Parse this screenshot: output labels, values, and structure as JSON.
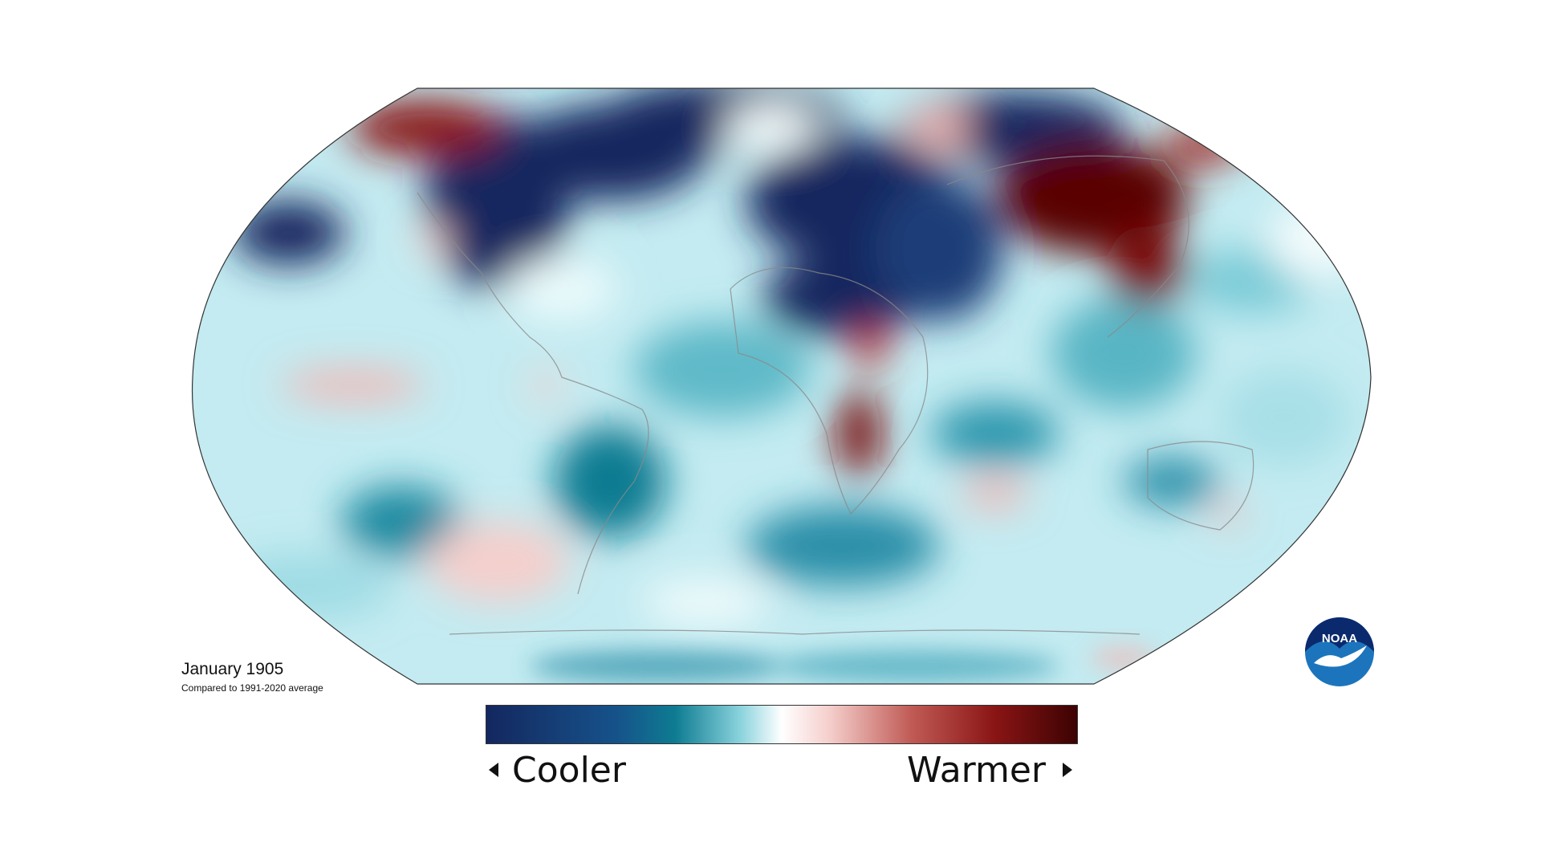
{
  "map": {
    "title": "January 1905",
    "subtitle": "Compared to 1991-2020 average",
    "projection": "Robinson",
    "variable": "temperature anomaly"
  },
  "legend": {
    "low_label": "Cooler",
    "high_label": "Warmer",
    "colors": [
      "#14275f",
      "#0e7c92",
      "#dff6f8",
      "#ffffff",
      "#f2b8b5",
      "#b8322e",
      "#3d0202"
    ]
  },
  "logo": {
    "text": "NOAA",
    "name": "noaa-logo"
  },
  "palette": {
    "ocean_base": "#bfeaf0",
    "deep_blue": "#14275f",
    "teal": "#0e7c92",
    "light_cyan": "#dff6f8",
    "pale_red": "#f5cfcc",
    "dark_red": "#5a0000",
    "outline": "#555555",
    "coast": "#8a8a8a"
  }
}
